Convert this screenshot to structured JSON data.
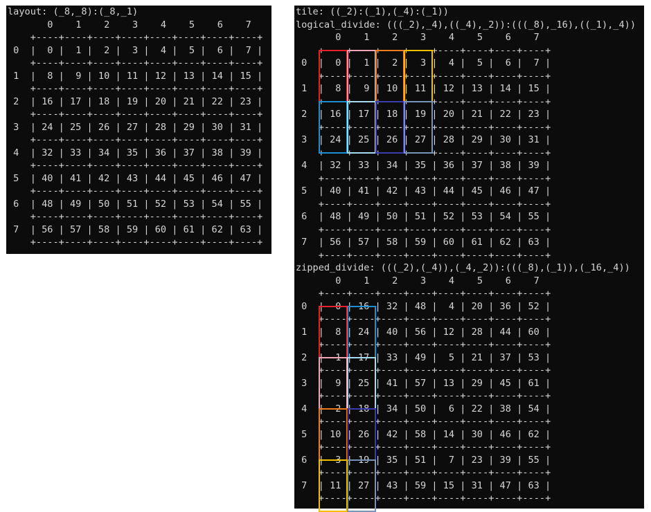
{
  "left": {
    "title": "layout: (_8,_8):(_8,_1)",
    "col_headers": [
      "0",
      "1",
      "2",
      "3",
      "4",
      "5",
      "6",
      "7"
    ],
    "row_labels": [
      "0",
      "1",
      "2",
      "3",
      "4",
      "5",
      "6",
      "7"
    ],
    "grid": [
      [
        0,
        1,
        2,
        3,
        4,
        5,
        6,
        7
      ],
      [
        8,
        9,
        10,
        11,
        12,
        13,
        14,
        15
      ],
      [
        16,
        17,
        18,
        19,
        20,
        21,
        22,
        23
      ],
      [
        24,
        25,
        26,
        27,
        28,
        29,
        30,
        31
      ],
      [
        32,
        33,
        34,
        35,
        36,
        37,
        38,
        39
      ],
      [
        40,
        41,
        42,
        43,
        44,
        45,
        46,
        47
      ],
      [
        48,
        49,
        50,
        51,
        52,
        53,
        54,
        55
      ],
      [
        56,
        57,
        58,
        59,
        60,
        61,
        62,
        63
      ]
    ]
  },
  "right": {
    "tile_title": "tile: ((_2):(_1),(_4):(_1))",
    "logical": {
      "title": "logical_divide: (((_2),_4),((_4),_2)):(((_8),_16),((_1),_4))",
      "col_headers": [
        "0",
        "1",
        "2",
        "3",
        "4",
        "5",
        "6",
        "7"
      ],
      "row_labels": [
        "0",
        "1",
        "2",
        "3",
        "4",
        "5",
        "6",
        "7"
      ],
      "grid": [
        [
          0,
          1,
          2,
          3,
          4,
          5,
          6,
          7
        ],
        [
          8,
          9,
          10,
          11,
          12,
          13,
          14,
          15
        ],
        [
          16,
          17,
          18,
          19,
          20,
          21,
          22,
          23
        ],
        [
          24,
          25,
          26,
          27,
          28,
          29,
          30,
          31
        ],
        [
          32,
          33,
          34,
          35,
          36,
          37,
          38,
          39
        ],
        [
          40,
          41,
          42,
          43,
          44,
          45,
          46,
          47
        ],
        [
          48,
          49,
          50,
          51,
          52,
          53,
          54,
          55
        ],
        [
          56,
          57,
          58,
          59,
          60,
          61,
          62,
          63
        ]
      ],
      "highlights": [
        {
          "row": 0,
          "col": 0,
          "color": "#e8202a"
        },
        {
          "row": 0,
          "col": 1,
          "color": "#f4a6b8"
        },
        {
          "row": 0,
          "col": 2,
          "color": "#f07c22"
        },
        {
          "row": 0,
          "col": 3,
          "color": "#f5c000"
        },
        {
          "row": 2,
          "col": 0,
          "color": "#1e8fd0"
        },
        {
          "row": 2,
          "col": 1,
          "color": "#a6dcef"
        },
        {
          "row": 2,
          "col": 2,
          "color": "#3c3cb0"
        },
        {
          "row": 2,
          "col": 3,
          "color": "#7a93b8"
        }
      ]
    },
    "zipped": {
      "title": "zipped_divide: (((_2),(_4)),(_4,_2)):(((_8),(_1)),(_16,_4))",
      "col_headers": [
        "0",
        "1",
        "2",
        "3",
        "4",
        "5",
        "6",
        "7"
      ],
      "row_labels": [
        "0",
        "1",
        "2",
        "3",
        "4",
        "5",
        "6",
        "7"
      ],
      "grid": [
        [
          0,
          16,
          32,
          48,
          4,
          20,
          36,
          52
        ],
        [
          8,
          24,
          40,
          56,
          12,
          28,
          44,
          60
        ],
        [
          1,
          17,
          33,
          49,
          5,
          21,
          37,
          53
        ],
        [
          9,
          25,
          41,
          57,
          13,
          29,
          45,
          61
        ],
        [
          2,
          18,
          34,
          50,
          6,
          22,
          38,
          54
        ],
        [
          10,
          26,
          42,
          58,
          14,
          30,
          46,
          62
        ],
        [
          3,
          19,
          35,
          51,
          7,
          23,
          39,
          55
        ],
        [
          11,
          27,
          43,
          59,
          15,
          31,
          47,
          63
        ]
      ],
      "highlights": [
        {
          "row": 0,
          "col": 0,
          "color": "#e8202a"
        },
        {
          "row": 2,
          "col": 0,
          "color": "#f4a6b8"
        },
        {
          "row": 4,
          "col": 0,
          "color": "#f07c22"
        },
        {
          "row": 6,
          "col": 0,
          "color": "#f5c000"
        },
        {
          "row": 0,
          "col": 1,
          "color": "#1e8fd0"
        },
        {
          "row": 2,
          "col": 1,
          "color": "#a6dcef"
        },
        {
          "row": 4,
          "col": 1,
          "color": "#3c3cb0"
        },
        {
          "row": 6,
          "col": 1,
          "color": "#7a93b8"
        }
      ]
    }
  }
}
